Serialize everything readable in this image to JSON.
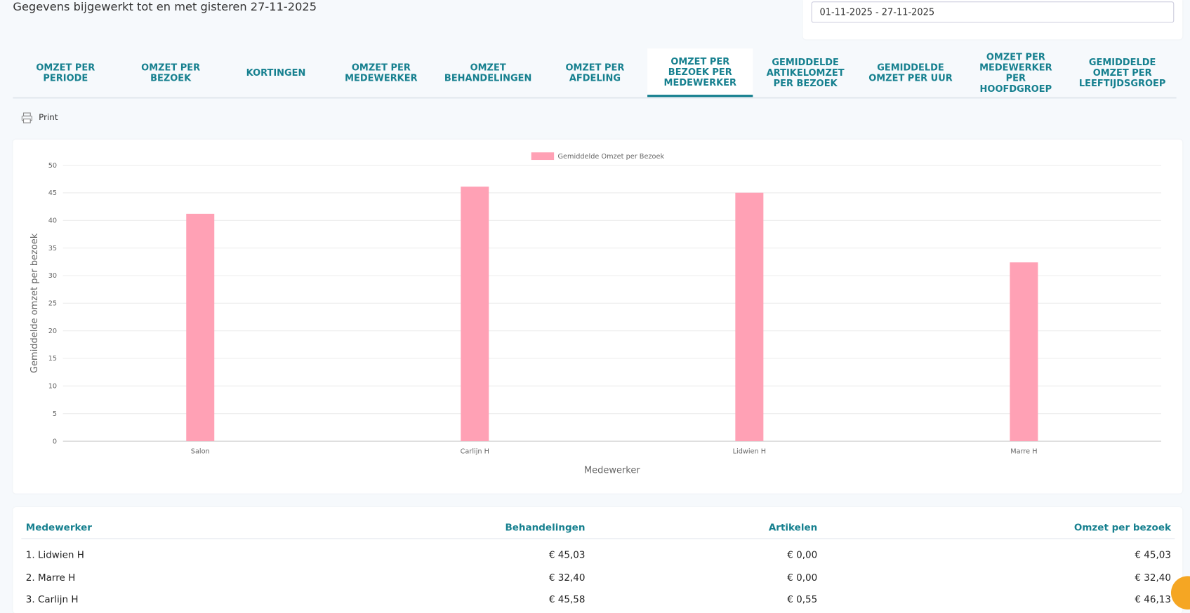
{
  "header": {
    "title": "Gegevens bijgewerkt tot en met gisteren 27-11-2025",
    "date_range": "01-11-2025 - 27-11-2025"
  },
  "tabs": [
    "OMZET PER PERIODE",
    "OMZET PER BEZOEK",
    "KORTINGEN",
    "OMZET PER MEDEWERKER",
    "OMZET BEHANDELINGEN",
    "OMZET PER AFDELING",
    "OMZET PER BEZOEK PER MEDEWERKER",
    "GEMIDDELDE ARTIKELOMZET PER BEZOEK",
    "GEMIDDELDE OMZET PER UUR",
    "OMZET PER MEDEWERKER PER HOOFDGROEP",
    "GEMIDDELDE OMZET PER LEEFTIJDSGROEP"
  ],
  "print": "Print",
  "chart_data": {
    "type": "bar",
    "legend": "Gemiddelde Omzet per Bezoek",
    "y_label": "Gemiddelde omzet per bezoek",
    "x_label": "Medewerker",
    "categories": [
      "Salon",
      "Carlijn H",
      "Lidwien H",
      "Marre H"
    ],
    "values": [
      41.2,
      46.13,
      45.03,
      32.4
    ],
    "color": "#ffa1b5",
    "ylim": [
      0,
      50
    ],
    "yticks": [
      0,
      5,
      10,
      15,
      20,
      25,
      30,
      35,
      40,
      45,
      50
    ],
    "grid": true
  },
  "table": {
    "headers": [
      "Medewerker",
      "Behandelingen",
      "Artikelen",
      "Omzet per bezoek"
    ],
    "rows": [
      [
        "1. Lidwien H",
        "€ 45,03",
        "€ 0,00",
        "€ 45,03"
      ],
      [
        "2. Marre H",
        "€ 32,40",
        "€ 0,00",
        "€ 32,40"
      ],
      [
        "3. Carlijn H",
        "€ 45,58",
        "€ 0,55",
        "€ 46,13"
      ]
    ]
  }
}
